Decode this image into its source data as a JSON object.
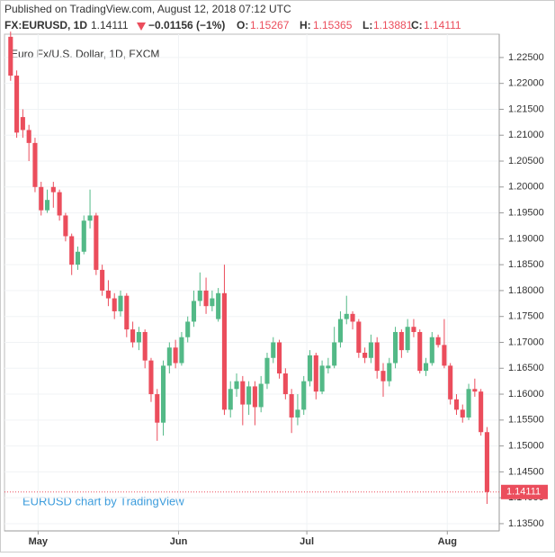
{
  "chart_data": {
    "type": "candlestick",
    "published": "Published on TradingView.com, August 12, 2018 07:12 UTC",
    "symbol": "FX:EURUSD, 1D",
    "change": "−0.01156 (−1%)",
    "o_label": "O:",
    "h_label": "H:",
    "l_label": "L:",
    "c_label": "C:",
    "legend": "Euro Fx/U.S. Dollar, 1D, FXCM",
    "watermark": "EURUSD chart by TradingView",
    "colors": {
      "up": "#53b987",
      "down": "#eb4d5c"
    },
    "xlim": [
      -1,
      80
    ],
    "xticks": [
      {
        "value": 4.5,
        "label": "May"
      },
      {
        "value": 27.5,
        "label": "Jun"
      },
      {
        "value": 48.5,
        "label": "Jul"
      },
      {
        "value": 71.5,
        "label": "Aug"
      }
    ],
    "ylim": [
      1.1336,
      1.2295
    ],
    "yticks": [
      {
        "value": 1.135,
        "label": "1.13500"
      },
      {
        "value": 1.14,
        "label": "1.14000"
      },
      {
        "value": 1.145,
        "label": "1.14500"
      },
      {
        "value": 1.15,
        "label": "1.15000"
      },
      {
        "value": 1.155,
        "label": "1.15500"
      },
      {
        "value": 1.16,
        "label": "1.16000"
      },
      {
        "value": 1.165,
        "label": "1.16500"
      },
      {
        "value": 1.17,
        "label": "1.17000"
      },
      {
        "value": 1.175,
        "label": "1.17500"
      },
      {
        "value": 1.18,
        "label": "1.18000"
      },
      {
        "value": 1.185,
        "label": "1.18500"
      },
      {
        "value": 1.19,
        "label": "1.19000"
      },
      {
        "value": 1.195,
        "label": "1.19500"
      },
      {
        "value": 1.2,
        "label": "1.20000"
      },
      {
        "value": 1.205,
        "label": "1.20500"
      },
      {
        "value": 1.21,
        "label": "1.21000"
      },
      {
        "value": 1.215,
        "label": "1.21500"
      },
      {
        "value": 1.22,
        "label": "1.22000"
      },
      {
        "value": 1.225,
        "label": "1.22500"
      }
    ],
    "candles": [
      [
        1.229,
        1.23,
        1.2205,
        1.2215
      ],
      [
        1.2215,
        1.2225,
        1.2095,
        1.2105
      ],
      [
        1.2135,
        1.215,
        1.2095,
        1.211
      ],
      [
        1.211,
        1.212,
        1.205,
        1.2085
      ],
      [
        1.2085,
        1.2095,
        1.199,
        1.2
      ],
      [
        1.2,
        1.201,
        1.1945,
        1.1955
      ],
      [
        1.1955,
        1.1995,
        1.195,
        1.1975
      ],
      [
        1.2,
        1.201,
        1.196,
        1.199
      ],
      [
        1.199,
        1.1995,
        1.1935,
        1.1945
      ],
      [
        1.1945,
        1.195,
        1.1895,
        1.1905
      ],
      [
        1.1905,
        1.191,
        1.183,
        1.185
      ],
      [
        1.185,
        1.1885,
        1.184,
        1.1875
      ],
      [
        1.1875,
        1.1945,
        1.187,
        1.1935
      ],
      [
        1.1935,
        1.1995,
        1.192,
        1.1945
      ],
      [
        1.1945,
        1.195,
        1.183,
        1.184
      ],
      [
        1.184,
        1.185,
        1.179,
        1.18
      ],
      [
        1.18,
        1.182,
        1.177,
        1.1785
      ],
      [
        1.1785,
        1.1795,
        1.1745,
        1.176
      ],
      [
        1.176,
        1.18,
        1.175,
        1.179
      ],
      [
        1.179,
        1.1795,
        1.171,
        1.1725
      ],
      [
        1.1725,
        1.174,
        1.169,
        1.17
      ],
      [
        1.17,
        1.173,
        1.1685,
        1.172
      ],
      [
        1.172,
        1.1725,
        1.165,
        1.1665
      ],
      [
        1.1665,
        1.167,
        1.1585,
        1.16
      ],
      [
        1.16,
        1.161,
        1.151,
        1.1545
      ],
      [
        1.1545,
        1.1665,
        1.152,
        1.1655
      ],
      [
        1.1655,
        1.17,
        1.164,
        1.169
      ],
      [
        1.169,
        1.1705,
        1.165,
        1.166
      ],
      [
        1.166,
        1.172,
        1.1655,
        1.171
      ],
      [
        1.171,
        1.175,
        1.17,
        1.174
      ],
      [
        1.174,
        1.18,
        1.173,
        1.178
      ],
      [
        1.178,
        1.1835,
        1.177,
        1.18
      ],
      [
        1.18,
        1.1825,
        1.1755,
        1.177
      ],
      [
        1.177,
        1.18,
        1.176,
        1.1785
      ],
      [
        1.1745,
        1.1805,
        1.174,
        1.1795
      ],
      [
        1.1795,
        1.185,
        1.156,
        1.157
      ],
      [
        1.157,
        1.1625,
        1.1555,
        1.161
      ],
      [
        1.161,
        1.164,
        1.1595,
        1.1625
      ],
      [
        1.1625,
        1.1635,
        1.154,
        1.158
      ],
      [
        1.158,
        1.1625,
        1.156,
        1.1615
      ],
      [
        1.1615,
        1.1625,
        1.154,
        1.1575
      ],
      [
        1.1575,
        1.1635,
        1.1565,
        1.162
      ],
      [
        1.162,
        1.168,
        1.161,
        1.167
      ],
      [
        1.167,
        1.171,
        1.166,
        1.17
      ],
      [
        1.17,
        1.1705,
        1.163,
        1.164
      ],
      [
        1.164,
        1.165,
        1.159,
        1.16
      ],
      [
        1.16,
        1.161,
        1.1525,
        1.1555
      ],
      [
        1.1555,
        1.16,
        1.154,
        1.157
      ],
      [
        1.157,
        1.1635,
        1.156,
        1.1625
      ],
      [
        1.1625,
        1.1685,
        1.1615,
        1.1675
      ],
      [
        1.1675,
        1.168,
        1.159,
        1.1605
      ],
      [
        1.1605,
        1.1665,
        1.16,
        1.1655
      ],
      [
        1.165,
        1.167,
        1.164,
        1.1655
      ],
      [
        1.1655,
        1.173,
        1.165,
        1.17
      ],
      [
        1.17,
        1.176,
        1.169,
        1.1745
      ],
      [
        1.1745,
        1.179,
        1.1735,
        1.1755
      ],
      [
        1.1755,
        1.176,
        1.1725,
        1.174
      ],
      [
        1.174,
        1.1745,
        1.167,
        1.168
      ],
      [
        1.168,
        1.169,
        1.166,
        1.167
      ],
      [
        1.167,
        1.1715,
        1.166,
        1.17
      ],
      [
        1.17,
        1.171,
        1.163,
        1.1645
      ],
      [
        1.1645,
        1.166,
        1.1595,
        1.1625
      ],
      [
        1.1625,
        1.167,
        1.1615,
        1.166
      ],
      [
        1.166,
        1.173,
        1.165,
        1.172
      ],
      [
        1.172,
        1.1725,
        1.167,
        1.1685
      ],
      [
        1.1685,
        1.1745,
        1.168,
        1.173
      ],
      [
        1.173,
        1.1745,
        1.171,
        1.172
      ],
      [
        1.172,
        1.1725,
        1.164,
        1.1645
      ],
      [
        1.1645,
        1.167,
        1.1635,
        1.166
      ],
      [
        1.166,
        1.172,
        1.1655,
        1.171
      ],
      [
        1.171,
        1.1715,
        1.169,
        1.1695
      ],
      [
        1.1695,
        1.1745,
        1.165,
        1.1655
      ],
      [
        1.1655,
        1.166,
        1.158,
        1.159
      ],
      [
        1.159,
        1.16,
        1.156,
        1.157
      ],
      [
        1.157,
        1.158,
        1.1545,
        1.1555
      ],
      [
        1.1555,
        1.162,
        1.155,
        1.161
      ],
      [
        1.161,
        1.163,
        1.1595,
        1.1605
      ],
      [
        1.1605,
        1.161,
        1.152,
        1.15267
      ],
      [
        1.15267,
        1.15365,
        1.13881,
        1.14111
      ]
    ]
  }
}
